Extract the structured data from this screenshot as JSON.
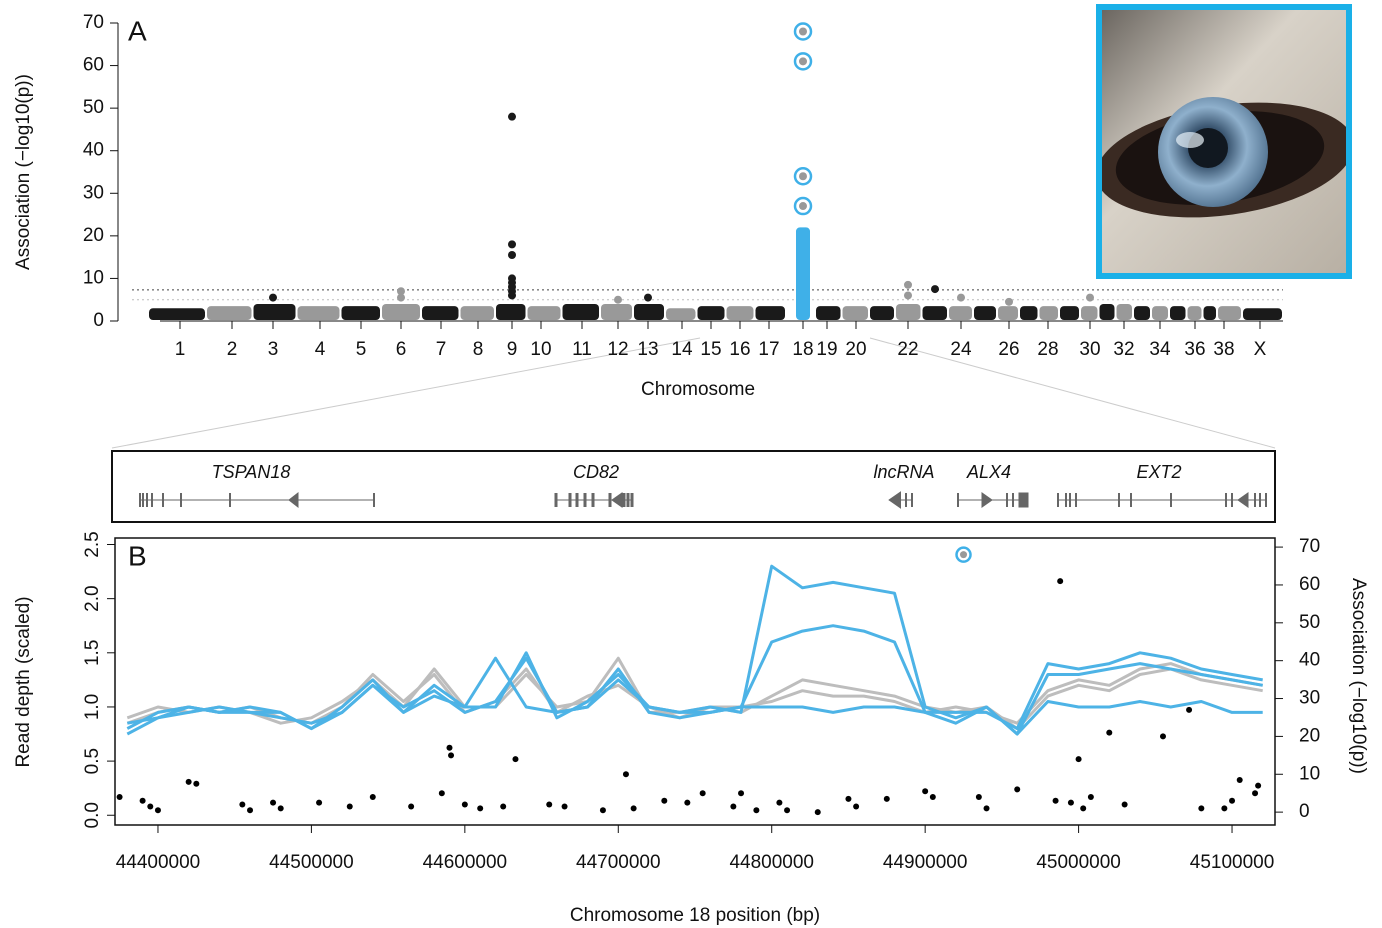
{
  "chart_data": [
    {
      "type": "manhattan",
      "panel": "A",
      "x_label": "Chromosome",
      "y_label": "Association (−log10(p))",
      "categories": [
        "1",
        "2",
        "3",
        "4",
        "5",
        "6",
        "7",
        "8",
        "9",
        "10",
        "11",
        "12",
        "13",
        "14",
        "15",
        "16",
        "17",
        "18",
        "19",
        "20",
        null,
        "22",
        null,
        "24",
        null,
        "26",
        null,
        "28",
        null,
        "30",
        null,
        "32",
        null,
        "34",
        null,
        "36",
        null,
        "38",
        "X"
      ],
      "values": [
        3,
        3.5,
        4,
        3.5,
        3.5,
        4,
        3.5,
        3.5,
        4,
        3.5,
        4,
        4,
        4,
        3,
        3.5,
        3.5,
        3.5,
        22,
        3.5,
        3.5,
        3.5,
        4,
        3.5,
        3.5,
        3.5,
        3.5,
        3.5,
        3.5,
        3.5,
        3.5,
        4,
        4,
        3.5,
        3.5,
        3.5,
        3.5,
        3.5,
        3.5,
        3
      ],
      "outliers": [
        [],
        [],
        [
          5.5
        ],
        [],
        [],
        [
          7,
          5.5
        ],
        [],
        [],
        [
          48,
          18,
          15.5,
          10,
          9,
          8,
          7,
          6
        ],
        [],
        [],
        [
          5
        ],
        [
          5.5
        ],
        [],
        [],
        [],
        [],
        [],
        [],
        [],
        [],
        [
          8.5,
          6
        ],
        [
          7.5
        ],
        [
          5.5
        ],
        [],
        [
          4.5
        ],
        [],
        [],
        [],
        [
          5.5
        ],
        [],
        [],
        [],
        [],
        [],
        [],
        [],
        [],
        []
      ],
      "highlight": "18",
      "highlight_color": "#3fb0e8",
      "circled": [
        68,
        61,
        34,
        27
      ],
      "colors": [
        "#1a1a1a",
        "#999999"
      ],
      "thresholds": [
        7.3,
        5
      ],
      "ylim": [
        0,
        70
      ],
      "yticks": [
        0,
        10,
        20,
        30,
        40,
        50,
        60,
        70
      ]
    },
    {
      "type": "line",
      "panel": "B",
      "x_label": "Chromosome 18 position (bp)",
      "y_label": "Read depth (scaled)",
      "y2_label": "Association (−log10(p))",
      "genes": [
        "TSPAN18",
        "CD82",
        "lncRNA",
        "ALX4",
        "EXT2"
      ],
      "xlim": [
        44372000,
        45128000
      ],
      "xticks": [
        44400000,
        44500000,
        44600000,
        44700000,
        44800000,
        44900000,
        45000000,
        45100000
      ],
      "ylim": [
        -0.09,
        2.56
      ],
      "yticks": [
        {
          "value": 0,
          "label": "0.0"
        },
        0.5,
        {
          "value": 1,
          "label": "1.0"
        },
        1.5,
        {
          "value": 2,
          "label": "2.0"
        },
        2.5
      ],
      "y2lim": [
        -3.4,
        72.4
      ],
      "y2ticks": [
        0,
        10,
        20,
        30,
        40,
        50,
        60,
        70
      ],
      "x": [
        44380000,
        44400000,
        44420000,
        44440000,
        44460000,
        44480000,
        44500000,
        44520000,
        44540000,
        44560000,
        44580000,
        44600000,
        44620000,
        44640000,
        44660000,
        44680000,
        44700000,
        44720000,
        44740000,
        44760000,
        44780000,
        44800000,
        44820000,
        44840000,
        44860000,
        44880000,
        44900000,
        44920000,
        44940000,
        44960000,
        44980000,
        45000000,
        45020000,
        45040000,
        45060000,
        45080000,
        45100000,
        45120000
      ],
      "series": [
        {
          "color": "#bdbdbd",
          "values": [
            0.85,
            0.95,
            1.0,
            0.95,
            1.0,
            0.9,
            0.85,
            1.0,
            1.3,
            1.05,
            1.3,
            0.95,
            1.05,
            1.35,
            0.95,
            1.1,
            1.2,
            1.0,
            0.9,
            1.0,
            0.95,
            1.1,
            1.25,
            1.2,
            1.15,
            1.1,
            1.0,
            0.95,
            1.0,
            0.8,
            1.1,
            1.2,
            1.15,
            1.3,
            1.35,
            1.25,
            1.2,
            1.15
          ]
        },
        {
          "color": "#bdbdbd",
          "values": [
            0.9,
            1.0,
            0.95,
            1.0,
            0.95,
            0.85,
            0.9,
            1.05,
            1.25,
            1.0,
            1.35,
            1.0,
            1.0,
            1.3,
            1.0,
            1.05,
            1.45,
            0.95,
            0.95,
            1.0,
            1.0,
            1.05,
            1.15,
            1.1,
            1.1,
            1.05,
            0.95,
            1.0,
            0.95,
            0.85,
            1.15,
            1.25,
            1.2,
            1.35,
            1.4,
            1.3,
            1.25,
            1.2
          ]
        },
        {
          "color": "#4db3e6",
          "values": [
            0.8,
            0.95,
            1.0,
            0.95,
            1.0,
            0.95,
            0.8,
            1.0,
            1.25,
            0.95,
            1.2,
            1.0,
            1.0,
            1.5,
            0.9,
            1.05,
            1.3,
            1.0,
            0.95,
            1.0,
            0.95,
            2.3,
            2.1,
            2.15,
            2.1,
            2.05,
            1.0,
            0.9,
            1.0,
            0.75,
            1.3,
            1.3,
            1.35,
            1.4,
            1.35,
            1.3,
            1.25,
            1.2
          ]
        },
        {
          "color": "#4db3e6",
          "values": [
            0.75,
            0.9,
            0.95,
            1.0,
            0.95,
            0.9,
            0.85,
            0.95,
            1.2,
            1.0,
            1.15,
            0.95,
            1.05,
            1.45,
            0.95,
            1.0,
            1.35,
            0.95,
            0.9,
            0.95,
            1.0,
            1.6,
            1.7,
            1.75,
            1.7,
            1.6,
            0.95,
            0.95,
            0.95,
            0.8,
            1.4,
            1.35,
            1.4,
            1.5,
            1.45,
            1.35,
            1.3,
            1.25
          ]
        },
        {
          "color": "#4db3e6",
          "values": [
            0.85,
            0.9,
            1.0,
            0.95,
            0.95,
            0.95,
            0.8,
            0.95,
            1.2,
            0.95,
            1.1,
            1.0,
            1.45,
            1.0,
            0.95,
            1.0,
            1.25,
            1.0,
            0.95,
            0.95,
            1.0,
            1.0,
            1.0,
            0.95,
            1.0,
            1.0,
            0.95,
            0.85,
            1.0,
            0.75,
            1.05,
            1.0,
            1.0,
            1.05,
            1.0,
            1.05,
            0.95,
            0.95
          ]
        },
        {
          "type": "scatter",
          "axis": "y2",
          "color": "#000000",
          "x": [
            44375000,
            44390000,
            44395000,
            44400000,
            44420000,
            44425000,
            44455000,
            44460000,
            44475000,
            44480000,
            44505000,
            44525000,
            44540000,
            44565000,
            44585000,
            44590000,
            44591000,
            44600000,
            44610000,
            44625000,
            44633000,
            44655000,
            44665000,
            44690000,
            44705000,
            44710000,
            44730000,
            44745000,
            44755000,
            44775000,
            44780000,
            44790000,
            44805000,
            44810000,
            44830000,
            44850000,
            44855000,
            44875000,
            44900000,
            44905000,
            44935000,
            44940000,
            44960000,
            44985000,
            44988000,
            44995000,
            45000000,
            45003000,
            45008000,
            45020000,
            45030000,
            45055000,
            45072000,
            45080000,
            45095000,
            45100000,
            45105000,
            45115000,
            45117000
          ],
          "values": [
            4,
            3,
            1.5,
            0.5,
            8,
            7.5,
            2,
            0.5,
            2.5,
            1,
            2.5,
            1.5,
            4,
            1.5,
            5,
            17,
            15,
            2,
            1,
            1.5,
            14,
            2,
            1.5,
            0.5,
            10,
            1,
            3,
            2.5,
            5,
            1.5,
            5,
            0.5,
            2.5,
            0.5,
            0,
            3.5,
            1.5,
            3.5,
            5.5,
            4,
            4,
            1,
            6,
            3,
            61,
            2.5,
            14,
            1,
            4,
            21,
            2,
            20,
            27,
            1,
            1,
            3,
            8.5,
            5,
            7
          ]
        },
        {
          "type": "scatter",
          "axis": "y2",
          "color": "#3fb0e8",
          "x": [
            44925000
          ],
          "values": [
            68
          ]
        }
      ]
    }
  ]
}
